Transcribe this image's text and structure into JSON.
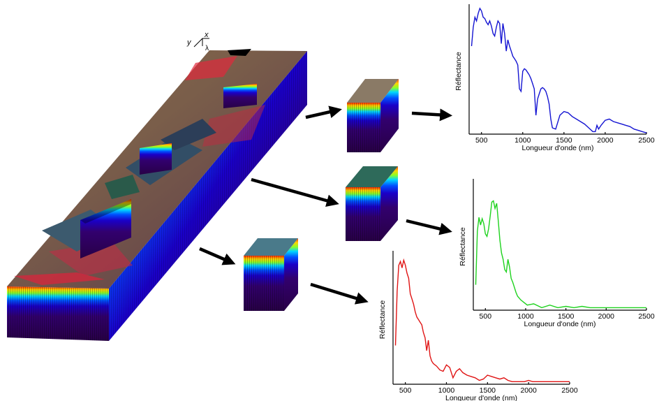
{
  "axis_indicator": {
    "y": "y",
    "x": "x",
    "lambda": "λ"
  },
  "chart_data": [
    {
      "type": "line",
      "series": [
        {
          "color": "#1414d2",
          "x": [
            380,
            400,
            420,
            440,
            460,
            480,
            500,
            520,
            540,
            560,
            580,
            600,
            620,
            640,
            660,
            680,
            700,
            720,
            740,
            760,
            780,
            800,
            820,
            840,
            860,
            880,
            900,
            920,
            940,
            960,
            980,
            1000,
            1020,
            1040,
            1060,
            1080,
            1100,
            1120,
            1140,
            1160,
            1180,
            1200,
            1220,
            1240,
            1260,
            1280,
            1300,
            1320,
            1340,
            1360,
            1400,
            1450,
            1500,
            1550,
            1600,
            1650,
            1700,
            1750,
            1800,
            1850,
            1880,
            1900,
            1920,
            1950,
            2000,
            2050,
            2100,
            2150,
            2200,
            2250,
            2300,
            2350,
            2400,
            2450,
            2500
          ],
          "y": [
            0.7,
            0.85,
            0.93,
            0.9,
            0.96,
            1.0,
            0.98,
            0.93,
            0.92,
            0.89,
            0.87,
            0.9,
            0.86,
            0.8,
            0.78,
            0.85,
            0.9,
            0.88,
            0.72,
            0.88,
            0.8,
            0.66,
            0.75,
            0.7,
            0.66,
            0.62,
            0.6,
            0.58,
            0.55,
            0.36,
            0.34,
            0.5,
            0.52,
            0.51,
            0.49,
            0.47,
            0.44,
            0.4,
            0.36,
            0.15,
            0.28,
            0.32,
            0.36,
            0.37,
            0.36,
            0.34,
            0.3,
            0.24,
            0.12,
            0.05,
            0.04,
            0.15,
            0.18,
            0.17,
            0.14,
            0.12,
            0.1,
            0.08,
            0.05,
            0.02,
            0.02,
            0.07,
            0.04,
            0.07,
            0.11,
            0.12,
            0.1,
            0.09,
            0.08,
            0.07,
            0.06,
            0.04,
            0.03,
            0.02,
            0.01
          ]
        }
      ],
      "xlim": [
        350,
        2500
      ],
      "xticks": [
        500,
        1000,
        1500,
        2000,
        2500
      ],
      "xlabel": "Longueur d'onde (nm)",
      "ylabel": "Réflectance"
    },
    {
      "type": "line",
      "series": [
        {
          "color": "#1ed21e",
          "x": [
            380,
            400,
            420,
            440,
            460,
            480,
            500,
            520,
            540,
            560,
            580,
            600,
            620,
            640,
            660,
            680,
            700,
            720,
            740,
            760,
            780,
            800,
            820,
            840,
            860,
            880,
            900,
            940,
            980,
            1020,
            1100,
            1200,
            1300,
            1400,
            1500,
            1600,
            1700,
            1800,
            1900,
            2000,
            2100,
            2200,
            2300,
            2400,
            2500
          ],
          "y": [
            0.2,
            0.62,
            0.73,
            0.67,
            0.72,
            0.68,
            0.6,
            0.58,
            0.64,
            0.74,
            0.85,
            0.86,
            0.8,
            0.84,
            0.7,
            0.55,
            0.45,
            0.4,
            0.32,
            0.3,
            0.4,
            0.34,
            0.25,
            0.22,
            0.18,
            0.14,
            0.11,
            0.08,
            0.06,
            0.04,
            0.05,
            0.02,
            0.04,
            0.02,
            0.03,
            0.02,
            0.03,
            0.02,
            0.02,
            0.02,
            0.02,
            0.02,
            0.02,
            0.02,
            0.02
          ]
        }
      ],
      "xlim": [
        350,
        2500
      ],
      "xticks": [
        500,
        1000,
        1500,
        2000,
        2500
      ],
      "xlabel": "Longueur d'onde (nm)",
      "ylabel": "Réflectance"
    },
    {
      "type": "line",
      "series": [
        {
          "color": "#e01414",
          "x": [
            380,
            400,
            420,
            440,
            460,
            480,
            500,
            520,
            540,
            560,
            580,
            600,
            620,
            640,
            660,
            680,
            700,
            720,
            740,
            760,
            780,
            800,
            820,
            840,
            880,
            920,
            960,
            1000,
            1040,
            1080,
            1120,
            1160,
            1200,
            1250,
            1300,
            1350,
            1400,
            1450,
            1500,
            1550,
            1600,
            1650,
            1700,
            1750,
            1800,
            1850,
            1900,
            1950,
            2000,
            2050,
            2100,
            2200,
            2300,
            2400,
            2500
          ],
          "y": [
            0.3,
            0.72,
            0.92,
            0.95,
            0.9,
            0.96,
            0.92,
            0.86,
            0.82,
            0.7,
            0.66,
            0.62,
            0.56,
            0.52,
            0.5,
            0.48,
            0.46,
            0.4,
            0.36,
            0.26,
            0.34,
            0.22,
            0.18,
            0.16,
            0.14,
            0.11,
            0.1,
            0.15,
            0.13,
            0.05,
            0.1,
            0.12,
            0.09,
            0.07,
            0.06,
            0.05,
            0.03,
            0.04,
            0.07,
            0.06,
            0.05,
            0.04,
            0.05,
            0.03,
            0.02,
            0.02,
            0.02,
            0.02,
            0.03,
            0.02,
            0.02,
            0.02,
            0.02,
            0.02,
            0.02
          ]
        }
      ],
      "xlim": [
        350,
        2500
      ],
      "xticks": [
        500,
        1000,
        1500,
        2000,
        2500
      ],
      "xlabel": "Longueur d'onde (nm)",
      "ylabel": "Réflectance"
    }
  ]
}
